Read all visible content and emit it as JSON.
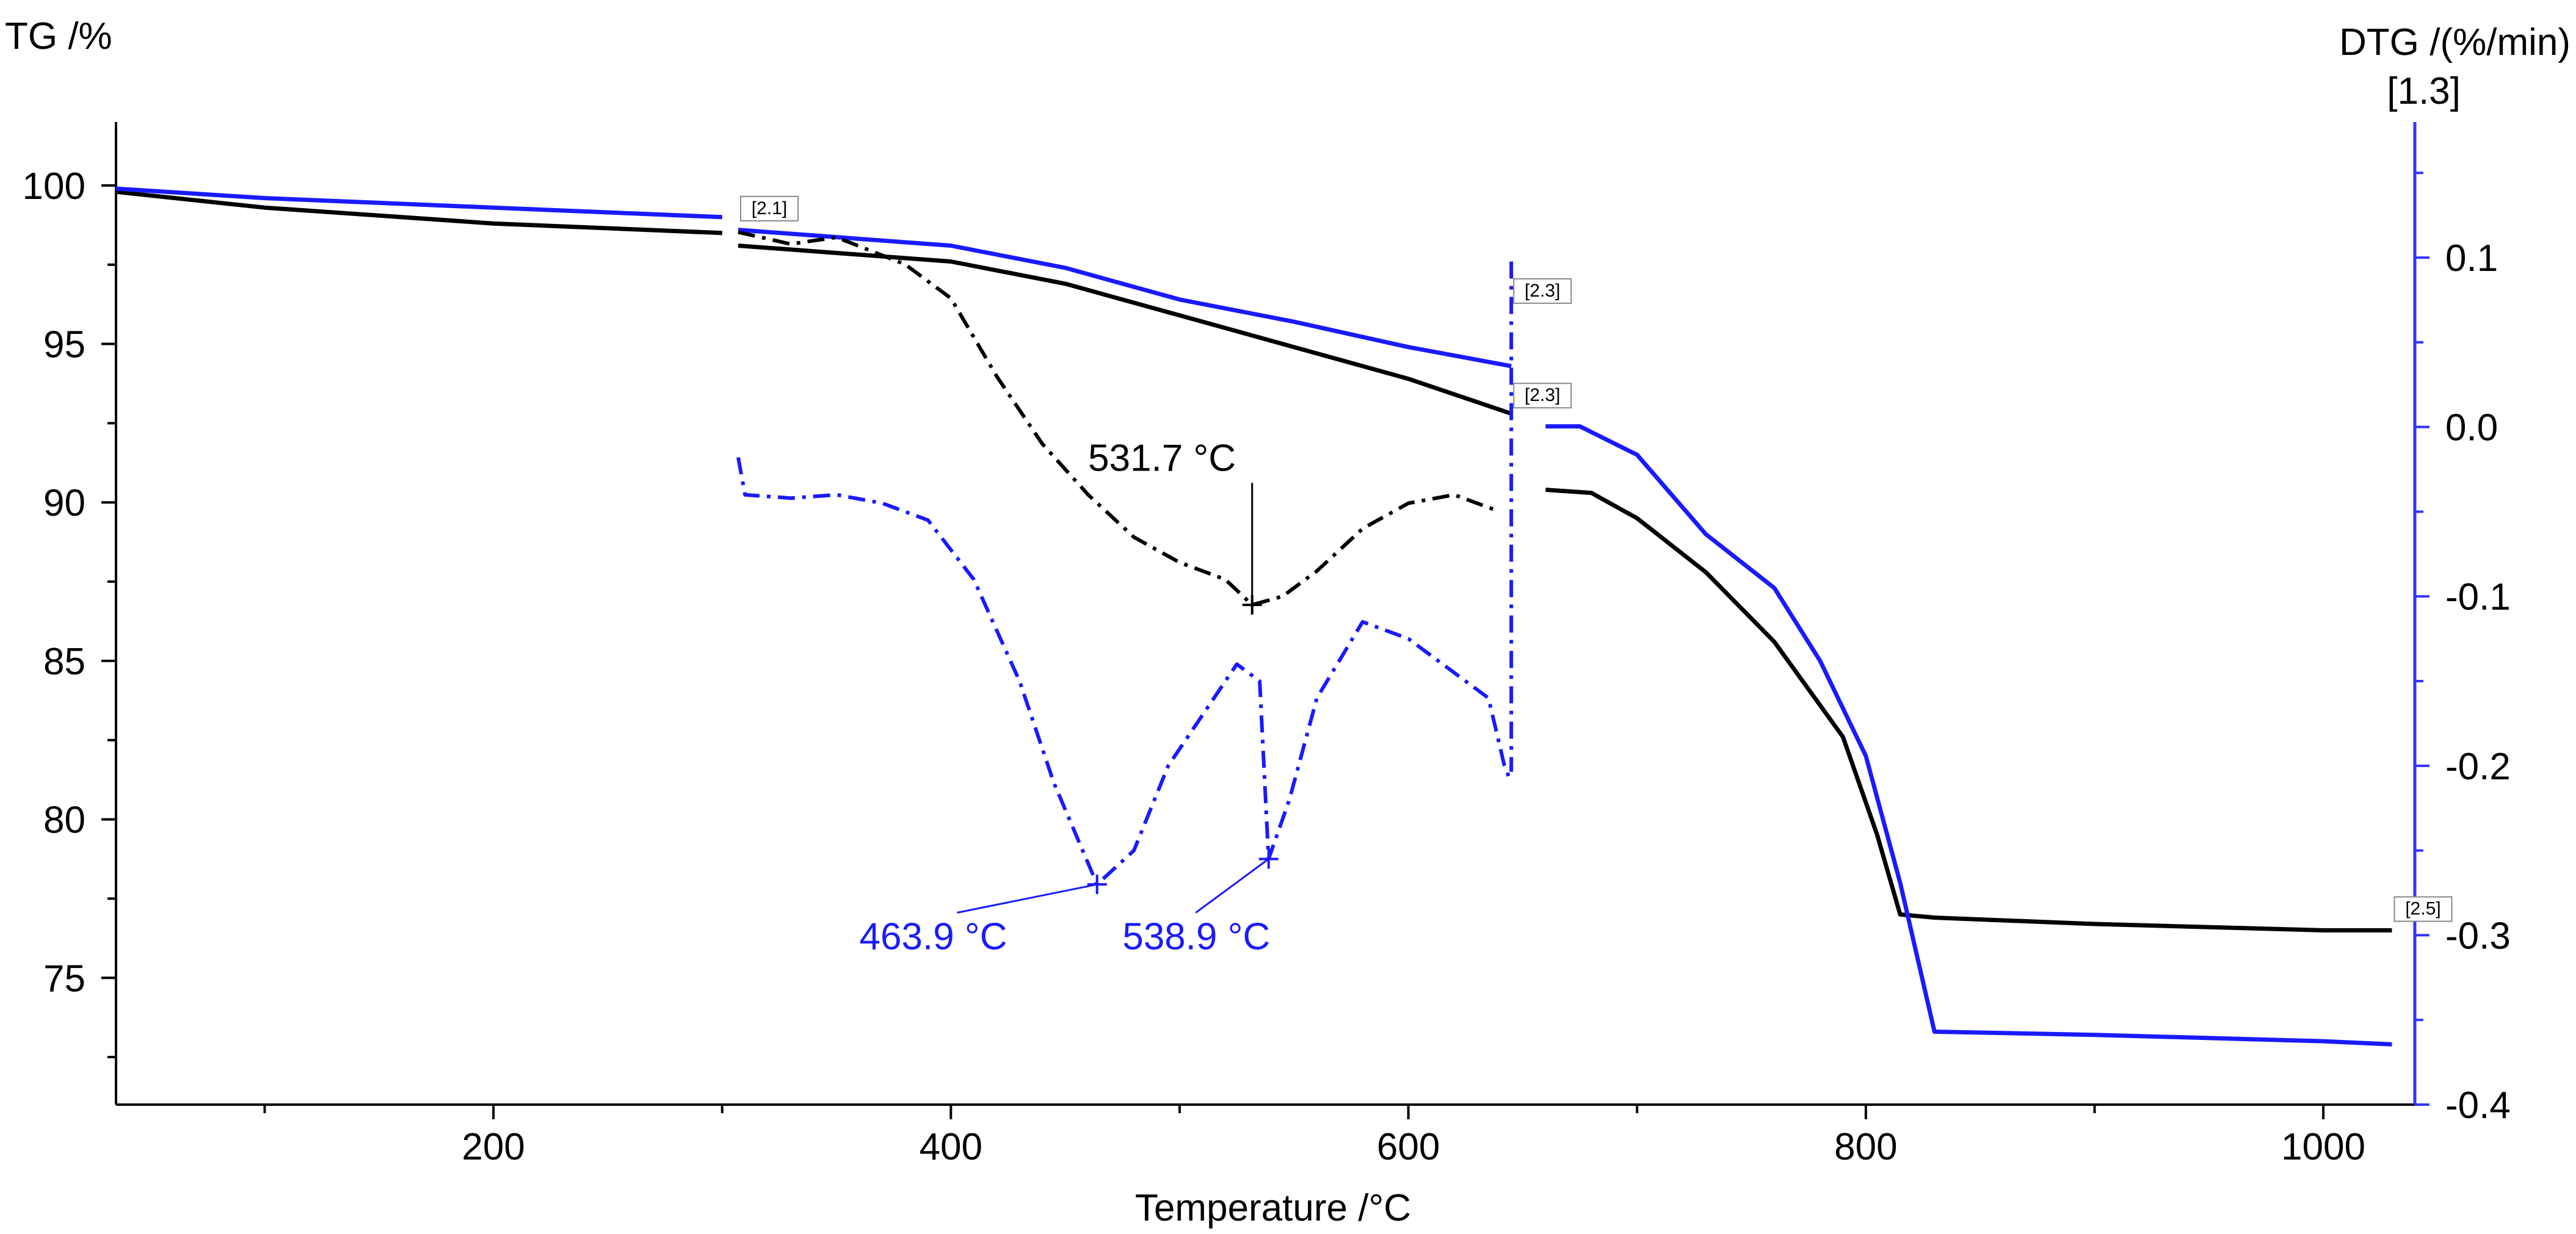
{
  "chart_data": {
    "type": "line",
    "xlabel": "Temperature /°C",
    "ylabel_left": "TG /%",
    "ylabel_right": "DTG /(%/min)",
    "right_axis_id": "[1.3]",
    "xlim": [
      35,
      1040
    ],
    "ylim_left": [
      71,
      102
    ],
    "ylim_right": [
      -0.4,
      0.18
    ],
    "x_ticks": [
      200,
      400,
      600,
      800,
      1000
    ],
    "y_left_ticks": [
      75,
      80,
      85,
      90,
      95,
      100
    ],
    "y_right_ticks": [
      0.1,
      0.0,
      -0.1,
      -0.2,
      -0.3,
      -0.4
    ],
    "y_right_tick_labels": [
      "0.1",
      "0.0",
      "-0.1",
      "-0.2",
      "-0.3",
      "-0.4"
    ],
    "colors": {
      "black": "#000000",
      "blue": "#1a1aff",
      "axis_blue": "#3333ff"
    },
    "series": [
      {
        "name": "TG black",
        "axis": "left",
        "color": "#000000",
        "style": "solid",
        "width": 7,
        "segments": [
          [
            [
              35,
              99.8
            ],
            [
              100,
              99.3
            ],
            [
              200,
              98.8
            ],
            [
              300,
              98.5
            ]
          ],
          [
            [
              307,
              98.1
            ],
            [
              400,
              97.6
            ],
            [
              450,
              96.9
            ],
            [
              500,
              95.9
            ],
            [
              550,
              94.9
            ],
            [
              600,
              93.9
            ],
            [
              645,
              92.8
            ]
          ],
          [
            [
              660,
              90.4
            ],
            [
              680,
              90.3
            ],
            [
              700,
              89.5
            ],
            [
              730,
              87.8
            ],
            [
              760,
              85.6
            ],
            [
              790,
              82.6
            ],
            [
              805,
              79.5
            ],
            [
              815,
              77.0
            ],
            [
              830,
              76.9
            ],
            [
              900,
              76.7
            ],
            [
              1000,
              76.5
            ],
            [
              1030,
              76.5
            ]
          ]
        ]
      },
      {
        "name": "TG blue",
        "axis": "left",
        "color": "#1a1aff",
        "style": "solid",
        "width": 7,
        "segments": [
          [
            [
              35,
              99.9
            ],
            [
              100,
              99.6
            ],
            [
              200,
              99.3
            ],
            [
              300,
              99.0
            ]
          ],
          [
            [
              307,
              98.6
            ],
            [
              400,
              98.1
            ],
            [
              450,
              97.4
            ],
            [
              500,
              96.4
            ],
            [
              550,
              95.7
            ],
            [
              600,
              94.9
            ],
            [
              645,
              94.3
            ]
          ],
          [
            [
              660,
              92.4
            ],
            [
              675,
              92.4
            ],
            [
              700,
              91.5
            ],
            [
              730,
              89.0
            ],
            [
              760,
              87.3
            ],
            [
              780,
              85.0
            ],
            [
              800,
              82.0
            ],
            [
              815,
              78.0
            ],
            [
              830,
              73.3
            ],
            [
              900,
              73.2
            ],
            [
              1000,
              73.0
            ],
            [
              1030,
              72.9
            ]
          ]
        ]
      },
      {
        "name": "DTG black",
        "axis": "right",
        "color": "#000000",
        "style": "dashdot",
        "width": 6,
        "segments": [
          [
            [
              307,
              0.115
            ],
            [
              330,
              0.108
            ],
            [
              350,
              0.112
            ],
            [
              380,
              0.096
            ],
            [
              400,
              0.076
            ],
            [
              420,
              0.03
            ],
            [
              440,
              -0.01
            ],
            [
              460,
              -0.04
            ],
            [
              480,
              -0.065
            ],
            [
              500,
              -0.08
            ],
            [
              520,
              -0.09
            ],
            [
              531.7,
              -0.105
            ],
            [
              545,
              -0.1
            ],
            [
              560,
              -0.085
            ],
            [
              580,
              -0.06
            ],
            [
              600,
              -0.045
            ],
            [
              620,
              -0.04
            ],
            [
              640,
              -0.05
            ]
          ]
        ]
      },
      {
        "name": "DTG blue",
        "axis": "right",
        "color": "#1a1aff",
        "style": "dashdot",
        "width": 6,
        "segments": [
          [
            [
              307,
              -0.018
            ],
            [
              310,
              -0.04
            ],
            [
              330,
              -0.042
            ],
            [
              350,
              -0.04
            ],
            [
              370,
              -0.045
            ],
            [
              390,
              -0.055
            ],
            [
              410,
              -0.09
            ],
            [
              430,
              -0.15
            ],
            [
              445,
              -0.21
            ],
            [
              463.9,
              -0.27
            ],
            [
              480,
              -0.25
            ],
            [
              495,
              -0.2
            ],
            [
              510,
              -0.17
            ],
            [
              525,
              -0.14
            ],
            [
              535,
              -0.15
            ],
            [
              538.9,
              -0.255
            ],
            [
              548,
              -0.22
            ],
            [
              560,
              -0.16
            ],
            [
              580,
              -0.115
            ],
            [
              600,
              -0.125
            ],
            [
              620,
              -0.145
            ],
            [
              635,
              -0.16
            ],
            [
              642,
              -0.2
            ],
            [
              645,
              -0.21
            ]
          ]
        ]
      }
    ],
    "segment_markers": [
      {
        "label": "[2.1]",
        "x": 307,
        "y": 99.0
      },
      {
        "label": "[2.3]",
        "x": 645,
        "y": 96.4
      },
      {
        "label": "[2.3]",
        "x": 645,
        "y": 93.1
      },
      {
        "label": "[2.5]",
        "x": 1030,
        "y": 76.9
      }
    ],
    "annotations": [
      {
        "label": "531.7 °C",
        "x": 531.7,
        "axis": "right",
        "y": -0.105,
        "color": "#000000",
        "text_x": 460,
        "text_y_left": 91.0,
        "align": "start"
      },
      {
        "label": "463.9 °C",
        "x": 463.9,
        "axis": "right",
        "y": -0.27,
        "color": "#1a1aff",
        "text_x": 360,
        "text_y_left": 75.9,
        "align": "start"
      },
      {
        "label": "538.9 °C",
        "x": 538.9,
        "axis": "right",
        "y": -0.255,
        "color": "#1a1aff",
        "text_x": 475,
        "text_y_left": 75.9,
        "align": "start"
      }
    ]
  }
}
